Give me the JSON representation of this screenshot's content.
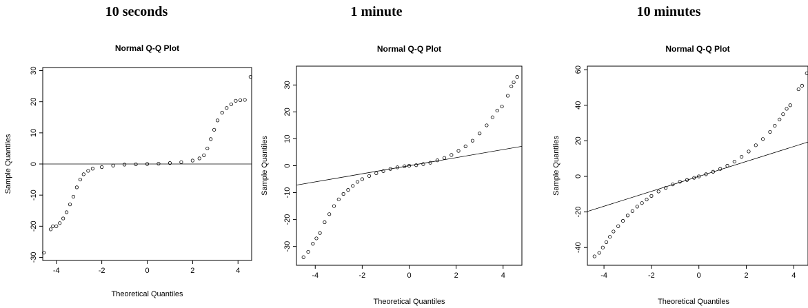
{
  "chart_data": [
    {
      "type": "scatter",
      "heading": "10 seconds",
      "title": "Normal Q-Q Plot",
      "xlabel": "Theoretical Quantiles",
      "ylabel": "Sample Quantiles",
      "xlim": [
        -4.6,
        4.6
      ],
      "ylim": [
        -31,
        31
      ],
      "xticks": [
        -4,
        -2,
        0,
        2,
        4
      ],
      "yticks": [
        -30,
        -20,
        -10,
        0,
        10,
        20,
        30
      ],
      "reference_line": {
        "slope": 0.0,
        "intercept": 0.0
      },
      "points": [
        [
          -4.55,
          -28.5
        ],
        [
          -4.25,
          -21
        ],
        [
          -4.15,
          -20
        ],
        [
          -4.0,
          -20
        ],
        [
          -3.85,
          -19
        ],
        [
          -3.7,
          -17.5
        ],
        [
          -3.55,
          -15.5
        ],
        [
          -3.4,
          -13
        ],
        [
          -3.25,
          -10.5
        ],
        [
          -3.1,
          -7.5
        ],
        [
          -2.95,
          -5
        ],
        [
          -2.8,
          -3.3
        ],
        [
          -2.6,
          -2.2
        ],
        [
          -2.4,
          -1.5
        ],
        [
          -2.0,
          -1.0
        ],
        [
          -1.5,
          -0.5
        ],
        [
          -1.0,
          -0.2
        ],
        [
          -0.5,
          -0.1
        ],
        [
          0.0,
          0.0
        ],
        [
          0.5,
          0.1
        ],
        [
          1.0,
          0.3
        ],
        [
          1.5,
          0.6
        ],
        [
          2.0,
          1.1
        ],
        [
          2.3,
          1.8
        ],
        [
          2.5,
          2.8
        ],
        [
          2.65,
          5
        ],
        [
          2.8,
          8
        ],
        [
          2.95,
          11
        ],
        [
          3.1,
          14
        ],
        [
          3.3,
          16.5
        ],
        [
          3.5,
          18
        ],
        [
          3.7,
          19.2
        ],
        [
          3.9,
          20.3
        ],
        [
          4.1,
          20.5
        ],
        [
          4.3,
          20.6
        ],
        [
          4.55,
          28
        ]
      ]
    },
    {
      "type": "scatter",
      "heading": "1 minute",
      "title": "Normal Q-Q Plot",
      "xlabel": "Theoretical Quantiles",
      "ylabel": "Sample Quantiles",
      "xlim": [
        -4.8,
        4.8
      ],
      "ylim": [
        -37,
        37
      ],
      "xticks": [
        -4,
        -2,
        0,
        2,
        4
      ],
      "yticks": [
        -30,
        -20,
        -10,
        0,
        10,
        20,
        30
      ],
      "reference_line": {
        "slope": 1.5,
        "intercept": 0.0
      },
      "points": [
        [
          -4.5,
          -34
        ],
        [
          -4.3,
          -32
        ],
        [
          -4.1,
          -29
        ],
        [
          -3.95,
          -27
        ],
        [
          -3.8,
          -25
        ],
        [
          -3.6,
          -21
        ],
        [
          -3.4,
          -18
        ],
        [
          -3.2,
          -15
        ],
        [
          -3.0,
          -12.5
        ],
        [
          -2.8,
          -10.5
        ],
        [
          -2.6,
          -9
        ],
        [
          -2.4,
          -7.5
        ],
        [
          -2.2,
          -6
        ],
        [
          -2.0,
          -5
        ],
        [
          -1.7,
          -3.8
        ],
        [
          -1.4,
          -2.8
        ],
        [
          -1.1,
          -2
        ],
        [
          -0.8,
          -1.2
        ],
        [
          -0.5,
          -0.6
        ],
        [
          -0.2,
          -0.2
        ],
        [
          0.0,
          0.0
        ],
        [
          0.3,
          0.2
        ],
        [
          0.6,
          0.6
        ],
        [
          0.9,
          1.1
        ],
        [
          1.2,
          2
        ],
        [
          1.5,
          2.9
        ],
        [
          1.8,
          4
        ],
        [
          2.1,
          5.5
        ],
        [
          2.4,
          7.2
        ],
        [
          2.7,
          9.3
        ],
        [
          3.0,
          12
        ],
        [
          3.3,
          15
        ],
        [
          3.55,
          18
        ],
        [
          3.75,
          20.5
        ],
        [
          3.95,
          22
        ],
        [
          4.2,
          26
        ],
        [
          4.35,
          29.5
        ],
        [
          4.45,
          31
        ],
        [
          4.6,
          33
        ]
      ]
    },
    {
      "type": "scatter",
      "heading": "10 minutes",
      "title": "Normal Q-Q Plot",
      "xlabel": "Theoretical Quantiles",
      "ylabel": "Sample Quantiles",
      "xlim": [
        -4.7,
        4.6
      ],
      "ylim": [
        -50,
        62
      ],
      "xticks": [
        -4,
        -2,
        0,
        2,
        4
      ],
      "yticks": [
        -40,
        -20,
        0,
        20,
        40,
        60
      ],
      "reference_line": {
        "slope": 4.2,
        "intercept": 0.0
      },
      "points": [
        [
          -4.4,
          -45
        ],
        [
          -4.2,
          -43
        ],
        [
          -4.05,
          -40
        ],
        [
          -3.9,
          -37
        ],
        [
          -3.75,
          -34
        ],
        [
          -3.6,
          -31
        ],
        [
          -3.4,
          -28
        ],
        [
          -3.2,
          -25
        ],
        [
          -3.0,
          -22
        ],
        [
          -2.8,
          -19.5
        ],
        [
          -2.6,
          -17
        ],
        [
          -2.4,
          -15
        ],
        [
          -2.2,
          -13
        ],
        [
          -2.0,
          -11
        ],
        [
          -1.7,
          -8.5
        ],
        [
          -1.4,
          -6.5
        ],
        [
          -1.1,
          -4.5
        ],
        [
          -0.8,
          -3
        ],
        [
          -0.5,
          -2
        ],
        [
          -0.2,
          -0.8
        ],
        [
          0.0,
          0.0
        ],
        [
          0.3,
          1.2
        ],
        [
          0.6,
          2.6
        ],
        [
          0.9,
          4.2
        ],
        [
          1.2,
          6
        ],
        [
          1.5,
          8.3
        ],
        [
          1.8,
          11
        ],
        [
          2.1,
          14
        ],
        [
          2.4,
          17.5
        ],
        [
          2.7,
          21
        ],
        [
          3.0,
          25
        ],
        [
          3.2,
          28.5
        ],
        [
          3.4,
          32
        ],
        [
          3.55,
          35
        ],
        [
          3.7,
          38
        ],
        [
          3.85,
          40
        ],
        [
          4.2,
          49
        ],
        [
          4.35,
          51
        ],
        [
          4.55,
          58
        ]
      ]
    }
  ]
}
